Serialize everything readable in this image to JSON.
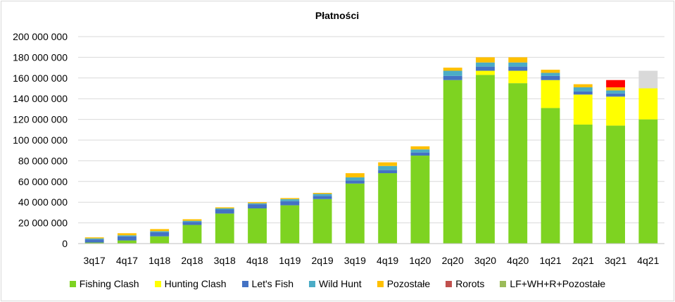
{
  "chart_data": {
    "type": "bar",
    "stacked": true,
    "title": "Płatności",
    "xlabel": "",
    "ylabel": "",
    "ylim": [
      0,
      200000000
    ],
    "yticks": [
      "0",
      "20 000 000",
      "40 000 000",
      "60 000 000",
      "80 000 000",
      "100 000 000",
      "120 000 000",
      "140 000 000",
      "160 000 000",
      "180 000 000",
      "200 000 000"
    ],
    "grid": true,
    "legend_position": "bottom",
    "categories": [
      "3q17",
      "4q17",
      "1q18",
      "2q18",
      "3q18",
      "4q18",
      "1q19",
      "2q19",
      "3q19",
      "4q19",
      "1q20",
      "2q20",
      "3q20",
      "4q20",
      "1q21",
      "2q21",
      "3q21",
      "4q21"
    ],
    "series": [
      {
        "name": "Fishing Clash",
        "color": "#7ed321",
        "values": [
          1000000,
          3000000,
          7000000,
          18000000,
          29000000,
          34000000,
          37000000,
          43000000,
          58000000,
          68000000,
          85000000,
          158000000,
          163000000,
          155000000,
          131000000,
          115000000,
          114000000,
          120000000
        ]
      },
      {
        "name": "Hunting Clash",
        "color": "#ffff00",
        "values": [
          0,
          0,
          0,
          0,
          0,
          0,
          0,
          0,
          0,
          0,
          0,
          0,
          4000000,
          12000000,
          27000000,
          29000000,
          28000000,
          30000000
        ]
      },
      {
        "name": "Let's Fish",
        "color": "#4472c4",
        "values": [
          3000000,
          4000000,
          4000000,
          3000000,
          4000000,
          4000000,
          4000000,
          3000000,
          3000000,
          3000000,
          3000000,
          4000000,
          4000000,
          4000000,
          4000000,
          3000000,
          3000000,
          0
        ]
      },
      {
        "name": "Wild Hunt",
        "color": "#4bacc6",
        "values": [
          1000000,
          1000000,
          1000000,
          1000000,
          1000000,
          1000000,
          2000000,
          2000000,
          3000000,
          4000000,
          3000000,
          5000000,
          4000000,
          4000000,
          3000000,
          4000000,
          3000000,
          0
        ]
      },
      {
        "name": "Pozostałe",
        "color": "#ffc000",
        "values": [
          1000000,
          2000000,
          2000000,
          1500000,
          1000000,
          1000000,
          1000000,
          1000000,
          4000000,
          3500000,
          3000000,
          3000000,
          5000000,
          5000000,
          3000000,
          3000000,
          3000000,
          0
        ]
      },
      {
        "name": "Rorots",
        "color": "#ff0000",
        "values": [
          0,
          0,
          0,
          0,
          0,
          0,
          0,
          0,
          0,
          0,
          0,
          0,
          0,
          0,
          0,
          0,
          7000000,
          0
        ]
      },
      {
        "name": "LF+WH+R+Pozostałe",
        "color": "#d9d9d9",
        "values": [
          0,
          0,
          0,
          0,
          0,
          0,
          0,
          0,
          0,
          0,
          0,
          0,
          0,
          0,
          0,
          0,
          0,
          17000000
        ]
      }
    ],
    "legend": [
      {
        "name": "Fishing Clash",
        "color": "#7ed321"
      },
      {
        "name": "Hunting Clash",
        "color": "#ffff00"
      },
      {
        "name": "Let's Fish",
        "color": "#4472c4"
      },
      {
        "name": "Wild Hunt",
        "color": "#4bacc6"
      },
      {
        "name": "Pozostałe",
        "color": "#ffc000"
      },
      {
        "name": "Rorots",
        "color": "#c0504d"
      },
      {
        "name": "LF+WH+R+Pozostałe",
        "color": "#9bbb59"
      }
    ]
  }
}
